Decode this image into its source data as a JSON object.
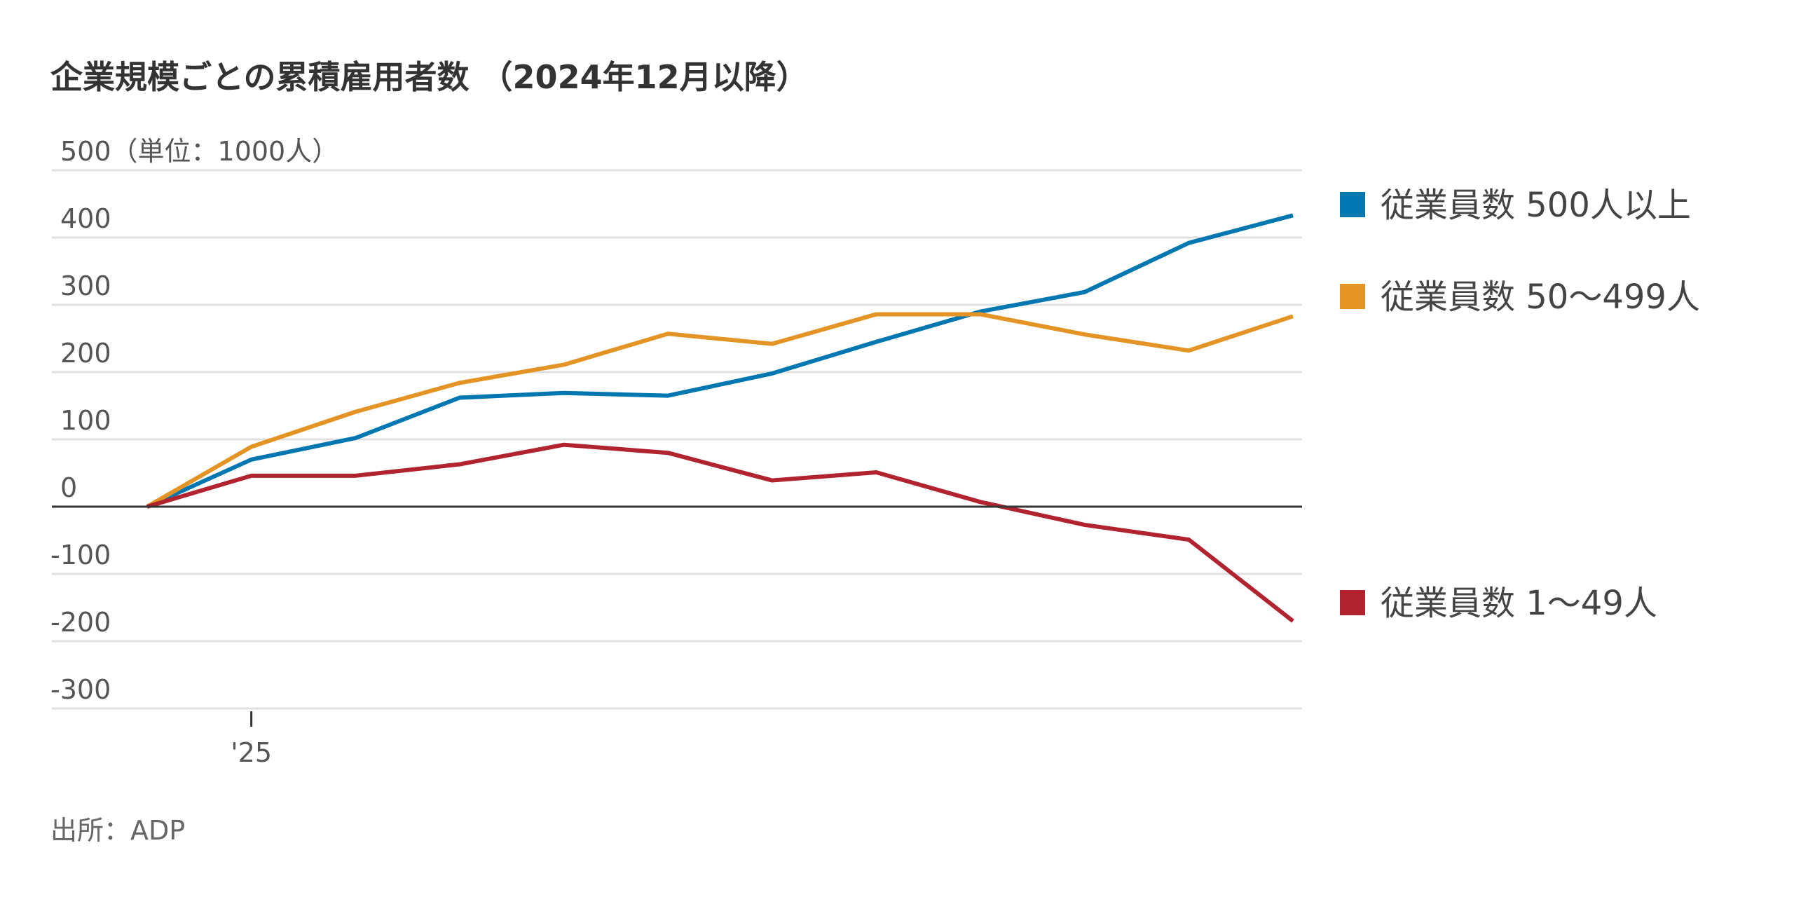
{
  "chart_data": {
    "type": "line",
    "title": "企業規模ごとの累積雇用者数 （2024年12月以降）",
    "ylabel": "（単位：1000人）",
    "ylim": [
      -300,
      500
    ],
    "yticks": [
      500,
      400,
      300,
      200,
      100,
      0,
      -100,
      -200,
      -300
    ],
    "ytick_labels": [
      "500（単位：1000人）",
      "400",
      "300",
      "200",
      "100",
      "0",
      "-100",
      "-200",
      "-300"
    ],
    "x": [
      "2024-12",
      "2025-01",
      "2025-02",
      "2025-03",
      "2025-04",
      "2025-05",
      "2025-06",
      "2025-07",
      "2025-08",
      "2025-09",
      "2025-10",
      "2025-11"
    ],
    "xtick_labels": [
      {
        "index": 1,
        "label": "'25"
      }
    ],
    "grid": true,
    "legend_placement": "right",
    "series": [
      {
        "name": "従業員数 500人以上",
        "color": "#0077b0",
        "values": [
          0,
          70,
          102,
          162,
          169,
          165,
          198,
          245,
          290,
          319,
          392,
          433
        ]
      },
      {
        "name": "従業員数 50〜499人",
        "color": "#e39425",
        "values": [
          0,
          89,
          141,
          184,
          211,
          257,
          242,
          286,
          286,
          256,
          232,
          283
        ]
      },
      {
        "name": "従業員数 1〜49人",
        "color": "#b1242f",
        "values": [
          0,
          46,
          46,
          63,
          92,
          80,
          39,
          51,
          7,
          -27,
          -49,
          -170
        ]
      }
    ],
    "source": "出所：ADP"
  }
}
